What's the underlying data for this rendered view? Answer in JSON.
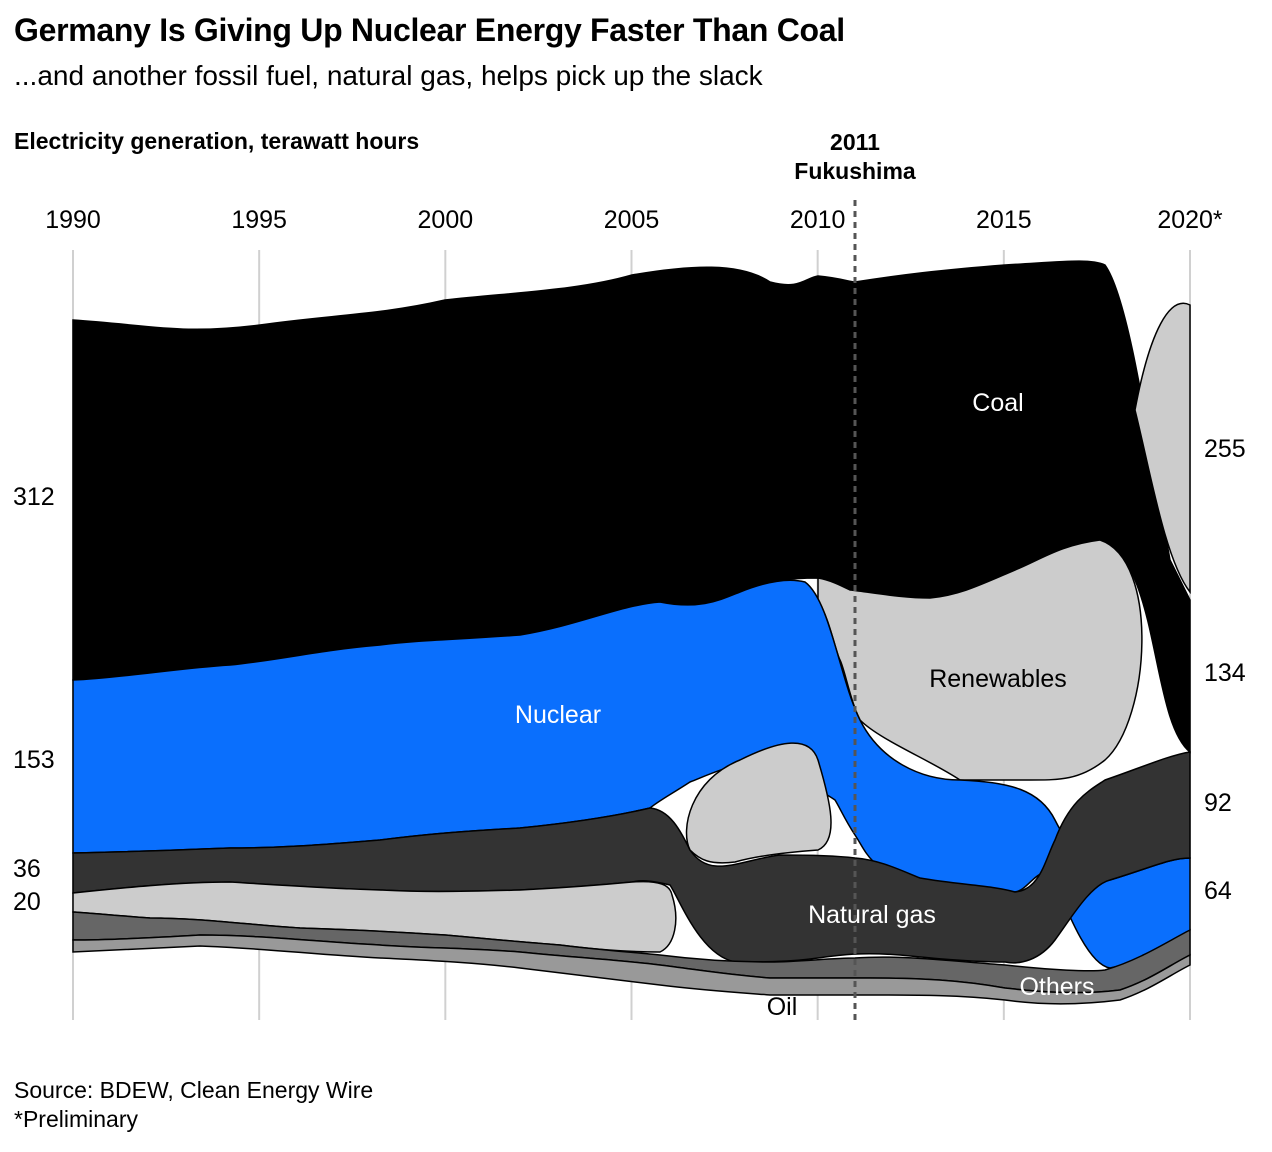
{
  "title": "Germany Is Giving Up Nuclear Energy Faster Than Coal",
  "subtitle": "...and another fossil fuel, natural gas, helps pick up the slack",
  "unit_label": "Electricity generation, terawatt hours",
  "event": {
    "year": "2011",
    "name": "Fukushima"
  },
  "source": "Source: BDEW, Clean Energy Wire",
  "footnote": "*Preliminary",
  "colors": {
    "coal": "#000000",
    "nuclear": "#0a6ffd",
    "natural_gas": "#333333",
    "renewables": "#cccccc",
    "others": "#666666",
    "oil": "#999999"
  },
  "chart_data": {
    "type": "area",
    "subtype": "ranked stream (bump area) chart",
    "x_tick_labels": [
      "1990",
      "1995",
      "2000",
      "2005",
      "2010",
      "2015",
      "2020*"
    ],
    "x_ticks": [
      1990,
      1995,
      2000,
      2005,
      2010,
      2015,
      2020
    ],
    "event_year": 2011,
    "start_labels": [
      "312",
      "153",
      "36",
      "20"
    ],
    "end_labels": [
      "255",
      "134",
      "92",
      "64"
    ],
    "series_labels": {
      "coal": "Coal",
      "renewables": "Renewables",
      "nuclear": "Nuclear",
      "natural_gas": "Natural gas",
      "others": "Others",
      "oil": "Oil"
    },
    "series": [
      {
        "name": "Coal",
        "values": [
          312,
          313,
          314,
          316,
          318,
          320,
          321,
          322,
          323,
          325,
          327,
          329,
          331,
          333,
          335,
          337,
          340,
          342,
          338,
          330,
          325,
          320,
          315,
          312,
          308,
          300,
          290,
          280,
          260,
          210,
          134
        ]
      },
      {
        "name": "Nuclear",
        "values": [
          153,
          154,
          156,
          157,
          158,
          159,
          160,
          161,
          162,
          163,
          164,
          164,
          164,
          165,
          166,
          166,
          167,
          168,
          158,
          150,
          141,
          108,
          99,
          97,
          97,
          92,
          85,
          76,
          76,
          71,
          64
        ]
      },
      {
        "name": "Natural gas",
        "values": [
          36,
          37,
          38,
          39,
          40,
          42,
          44,
          46,
          48,
          50,
          52,
          55,
          57,
          60,
          62,
          70,
          73,
          76,
          88,
          80,
          89,
          86,
          76,
          67,
          61,
          62,
          81,
          86,
          83,
          91,
          92
        ]
      },
      {
        "name": "Renewables",
        "values": [
          20,
          21,
          22,
          23,
          24,
          25,
          26,
          27,
          28,
          29,
          35,
          38,
          43,
          45,
          56,
          62,
          72,
          88,
          95,
          96,
          105,
          124,
          143,
          152,
          162,
          188,
          189,
          216,
          224,
          240,
          255
        ]
      },
      {
        "name": "Others",
        "values": [
          14,
          14,
          15,
          15,
          15,
          15,
          16,
          16,
          16,
          16,
          17,
          17,
          18,
          18,
          19,
          19,
          20,
          20,
          21,
          21,
          22,
          23,
          24,
          25,
          26,
          27,
          28,
          28,
          28,
          28,
          28
        ]
      },
      {
        "name": "Oil",
        "values": [
          11,
          11,
          11,
          10,
          10,
          10,
          9,
          9,
          9,
          9,
          9,
          9,
          9,
          9,
          8,
          8,
          8,
          8,
          8,
          8,
          7,
          7,
          7,
          7,
          6,
          6,
          6,
          6,
          5,
          5,
          5
        ]
      }
    ]
  }
}
